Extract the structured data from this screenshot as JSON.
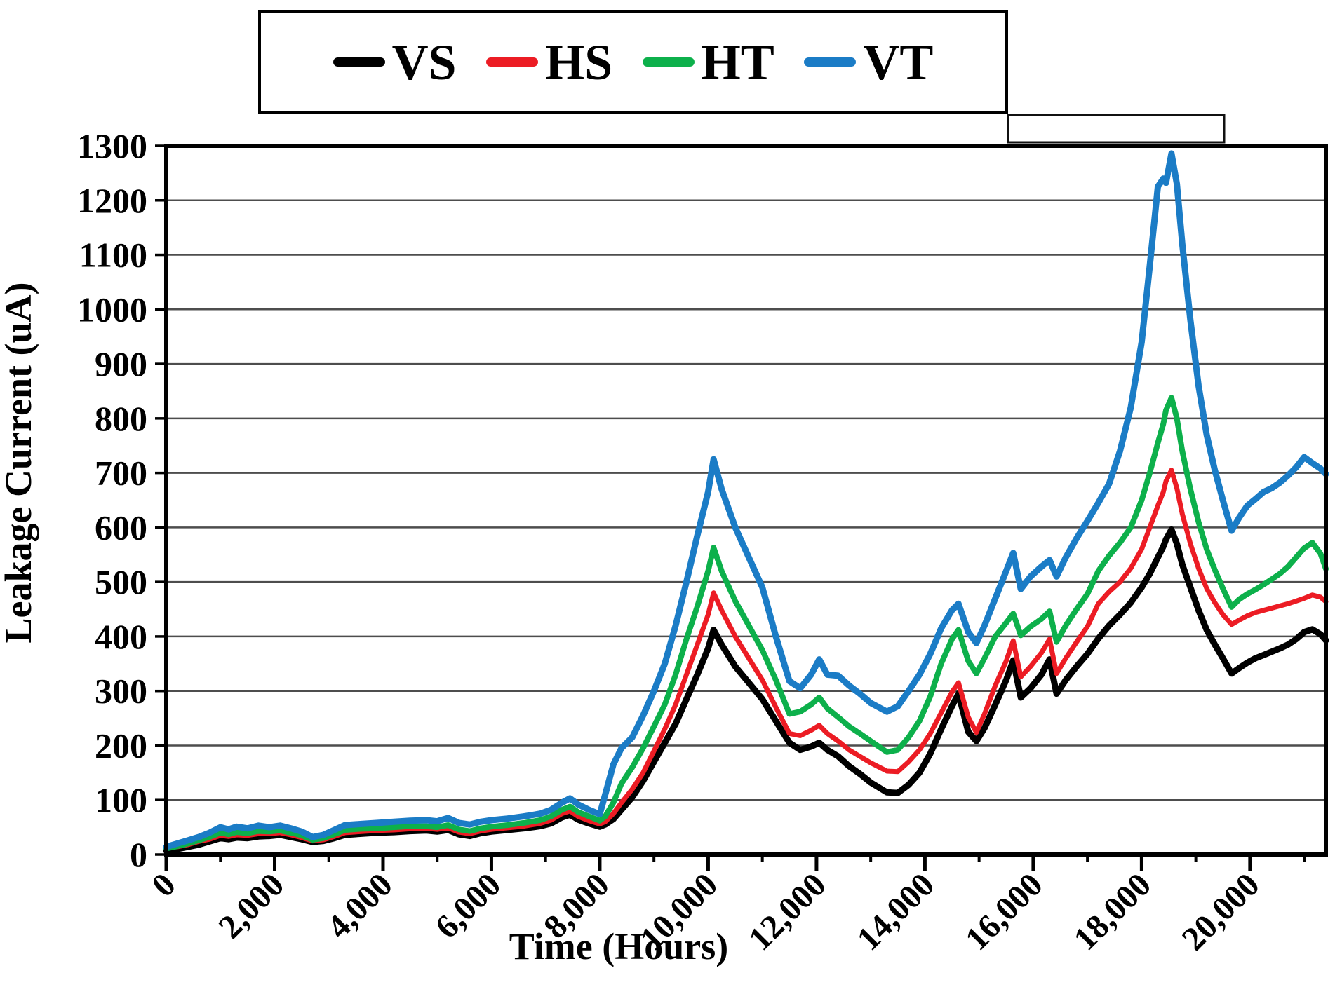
{
  "legend": {
    "items": [
      {
        "label": "VS",
        "color": "#000000"
      },
      {
        "label": "HS",
        "color": "#EC1C24"
      },
      {
        "label": "HT",
        "color": "#0DB04B"
      },
      {
        "label": "VT",
        "color": "#1B7CC6"
      }
    ]
  },
  "axes": {
    "x_title": "Time (Hours)",
    "y_title": "Leakage Current (uA)",
    "x_major_ticks": [
      0,
      2000,
      4000,
      6000,
      8000,
      10000,
      12000,
      14000,
      16000,
      18000,
      20000
    ],
    "x_major_labels": [
      "0",
      "2,000",
      "4,000",
      "6,000",
      "8,000",
      "10,000",
      "12,000",
      "14,000",
      "16,000",
      "18,000",
      "20,000"
    ],
    "x_minor_ticks": [
      1000,
      3000,
      5000,
      7000,
      9000,
      11000,
      13000,
      15000,
      17000,
      19000,
      21000
    ],
    "y_ticks": [
      0,
      100,
      200,
      300,
      400,
      500,
      600,
      700,
      800,
      900,
      1000,
      1100,
      1200,
      1300
    ],
    "y_labels": [
      "0",
      "100",
      "200",
      "300",
      "400",
      "500",
      "600",
      "700",
      "800",
      "900",
      "1000",
      "1100",
      "1200",
      "1300"
    ]
  },
  "chart_data": {
    "type": "line",
    "title": "",
    "xlabel": "Time (Hours)",
    "ylabel": "Leakage Current (uA)",
    "xlim": [
      0,
      21400
    ],
    "ylim": [
      0,
      1300
    ],
    "grid": "horizontal, every 100 uA",
    "legend_position": "top",
    "x_hours": [
      0,
      200,
      400,
      600,
      800,
      1000,
      1150,
      1300,
      1500,
      1700,
      1900,
      2100,
      2300,
      2500,
      2700,
      2900,
      3100,
      3300,
      3600,
      3900,
      4200,
      4500,
      4800,
      5000,
      5200,
      5400,
      5600,
      5800,
      6000,
      6300,
      6600,
      6900,
      7100,
      7300,
      7450,
      7600,
      7800,
      8000,
      8100,
      8250,
      8400,
      8600,
      8800,
      9000,
      9200,
      9400,
      9600,
      9800,
      10000,
      10100,
      10250,
      10500,
      10750,
      11000,
      11250,
      11500,
      11700,
      11900,
      12050,
      12200,
      12400,
      12600,
      12800,
      13000,
      13300,
      13500,
      13700,
      13900,
      14100,
      14300,
      14500,
      14620,
      14800,
      14950,
      15100,
      15300,
      15500,
      15630,
      15770,
      15950,
      16150,
      16300,
      16430,
      16600,
      16800,
      17000,
      17200,
      17400,
      17600,
      17800,
      18000,
      18150,
      18300,
      18400,
      18450,
      18550,
      18650,
      18750,
      18900,
      19050,
      19200,
      19350,
      19500,
      19660,
      19800,
      19950,
      20100,
      20250,
      20400,
      20550,
      20700,
      20850,
      21000,
      21150,
      21300,
      21400
    ],
    "series": [
      {
        "name": "VS",
        "color": "#000000",
        "stroke_width": 9,
        "values": [
          7,
          10,
          14,
          18,
          24,
          30,
          28,
          31,
          30,
          33,
          34,
          36,
          32,
          28,
          23,
          25,
          30,
          36,
          38,
          40,
          41,
          43,
          44,
          42,
          45,
          37,
          34,
          39,
          42,
          45,
          48,
          52,
          57,
          68,
          73,
          64,
          57,
          51,
          55,
          65,
          82,
          105,
          135,
          170,
          205,
          240,
          285,
          330,
          378,
          412,
          385,
          345,
          315,
          285,
          245,
          205,
          192,
          198,
          205,
          192,
          180,
          162,
          148,
          132,
          114,
          113,
          128,
          150,
          185,
          230,
          272,
          295,
          225,
          208,
          232,
          275,
          320,
          356,
          288,
          305,
          330,
          358,
          295,
          320,
          345,
          368,
          396,
          420,
          440,
          462,
          490,
          515,
          545,
          565,
          578,
          596,
          570,
          532,
          490,
          448,
          412,
          385,
          360,
          332,
          342,
          352,
          360,
          366,
          372,
          378,
          385,
          395,
          408,
          413,
          404,
          393
        ]
      },
      {
        "name": "HS",
        "color": "#EC1C24",
        "stroke_width": 7,
        "values": [
          16,
          14,
          18,
          24,
          28,
          35,
          33,
          36,
          35,
          38,
          38,
          40,
          36,
          31,
          25,
          27,
          33,
          40,
          42,
          44,
          45,
          47,
          48,
          46,
          49,
          41,
          38,
          43,
          46,
          49,
          52,
          57,
          63,
          75,
          80,
          70,
          62,
          56,
          60,
          75,
          95,
          120,
          150,
          190,
          230,
          275,
          330,
          385,
          440,
          480,
          448,
          400,
          360,
          320,
          270,
          222,
          218,
          228,
          237,
          222,
          208,
          192,
          180,
          168,
          153,
          152,
          170,
          192,
          222,
          260,
          298,
          315,
          252,
          224,
          258,
          310,
          355,
          392,
          326,
          345,
          370,
          395,
          332,
          360,
          390,
          418,
          460,
          482,
          500,
          525,
          560,
          600,
          640,
          665,
          685,
          705,
          672,
          625,
          570,
          525,
          488,
          462,
          440,
          422,
          430,
          438,
          444,
          448,
          452,
          456,
          460,
          465,
          470,
          476,
          472,
          464
        ]
      },
      {
        "name": "HT",
        "color": "#0DB04B",
        "stroke_width": 8,
        "values": [
          11,
          15,
          20,
          26,
          32,
          40,
          37,
          41,
          39,
          43,
          42,
          44,
          40,
          35,
          27,
          30,
          37,
          45,
          47,
          48,
          50,
          52,
          52,
          50,
          54,
          46,
          43,
          48,
          51,
          54,
          58,
          63,
          70,
          82,
          88,
          78,
          70,
          62,
          70,
          95,
          130,
          160,
          195,
          235,
          275,
          330,
          395,
          455,
          520,
          563,
          520,
          465,
          420,
          375,
          320,
          258,
          262,
          275,
          288,
          268,
          252,
          235,
          222,
          208,
          188,
          192,
          215,
          245,
          290,
          350,
          395,
          412,
          355,
          332,
          360,
          400,
          425,
          442,
          402,
          418,
          432,
          446,
          390,
          420,
          450,
          478,
          520,
          548,
          572,
          600,
          650,
          700,
          755,
          790,
          815,
          838,
          800,
          740,
          670,
          610,
          560,
          522,
          488,
          454,
          468,
          478,
          486,
          495,
          505,
          515,
          528,
          545,
          562,
          572,
          552,
          524
        ]
      },
      {
        "name": "VT",
        "color": "#1B7CC6",
        "stroke_width": 9,
        "values": [
          14,
          20,
          26,
          32,
          40,
          50,
          46,
          51,
          48,
          53,
          50,
          53,
          48,
          42,
          32,
          36,
          45,
          54,
          56,
          58,
          60,
          62,
          63,
          61,
          67,
          58,
          55,
          60,
          63,
          66,
          70,
          75,
          82,
          95,
          103,
          92,
          82,
          74,
          110,
          165,
          195,
          215,
          255,
          300,
          350,
          420,
          500,
          585,
          665,
          725,
          670,
          600,
          545,
          490,
          400,
          318,
          305,
          330,
          358,
          330,
          328,
          310,
          295,
          278,
          262,
          272,
          300,
          330,
          368,
          415,
          448,
          460,
          408,
          388,
          420,
          470,
          520,
          553,
          487,
          510,
          528,
          540,
          510,
          545,
          580,
          612,
          645,
          680,
          740,
          820,
          940,
          1080,
          1225,
          1240,
          1232,
          1286,
          1230,
          1120,
          980,
          860,
          770,
          705,
          650,
          594,
          618,
          640,
          652,
          665,
          672,
          682,
          695,
          710,
          729,
          718,
          708,
          698
        ]
      }
    ]
  }
}
